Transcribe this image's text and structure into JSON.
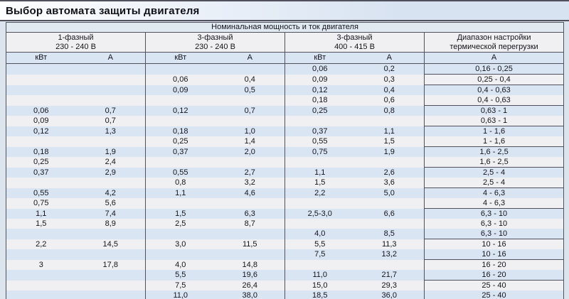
{
  "page_title": "Выбор автомата защиты двигателя",
  "table": {
    "top_header": "Номинальная мощность и ток двигателя",
    "groups": [
      {
        "line1": "1-фазный",
        "line2": "230 - 240 В"
      },
      {
        "line1": "3-фазный",
        "line2": "230 - 240 В"
      },
      {
        "line1": "3-фазный",
        "line2": "400 - 415 В"
      },
      {
        "line1": "Диапазон настройки",
        "line2": "термической перегрузки"
      }
    ],
    "sub_headers": [
      "кВт",
      "А",
      "кВт",
      "А",
      "кВт",
      "А",
      "А"
    ],
    "rows": [
      [
        "",
        "",
        "",
        "",
        "0,06",
        "0,2",
        "0,16 - 0,25"
      ],
      [
        "",
        "",
        "0,06",
        "0,4",
        "0,09",
        "0,3",
        "0,25 - 0,4"
      ],
      [
        "",
        "",
        "0,09",
        "0,5",
        "0,12",
        "0,4",
        "0,4 - 0,63"
      ],
      [
        "",
        "",
        "",
        "",
        "0,18",
        "0,6",
        "0,4 - 0,63"
      ],
      [
        "0,06",
        "0,7",
        "0,12",
        "0,7",
        "0,25",
        "0,8",
        "0,63 - 1"
      ],
      [
        "0,09",
        "0,7",
        "",
        "",
        "",
        "",
        "0,63 - 1"
      ],
      [
        "0,12",
        "1,3",
        "0,18",
        "1,0",
        "0,37",
        "1,1",
        "1 - 1,6"
      ],
      [
        "",
        "",
        "0,25",
        "1,4",
        "0,55",
        "1,5",
        "1 - 1,6"
      ],
      [
        "0,18",
        "1,9",
        "0,37",
        "2,0",
        "0,75",
        "1,9",
        "1,6 - 2,5"
      ],
      [
        "0,25",
        "2,4",
        "",
        "",
        "",
        "",
        "1,6 - 2,5"
      ],
      [
        "0,37",
        "2,9",
        "0,55",
        "2,7",
        "1,1",
        "2,6",
        "2,5 - 4"
      ],
      [
        "",
        "",
        "0,8",
        "3,2",
        "1,5",
        "3,6",
        "2,5 - 4"
      ],
      [
        "0,55",
        "4,2",
        "1,1",
        "4,6",
        "2,2",
        "5,0",
        "4 - 6,3"
      ],
      [
        "0,75",
        "5,6",
        "",
        "",
        "",
        "",
        "4 - 6,3"
      ],
      [
        "1,1",
        "7,4",
        "1,5",
        "6,3",
        "2,5-3,0",
        "6,6",
        "6,3 - 10"
      ],
      [
        "1,5",
        "8,9",
        "2,5",
        "8,7",
        "",
        "",
        "6,3 - 10"
      ],
      [
        "",
        "",
        "",
        "",
        "4,0",
        "8,5",
        "6,3 - 10"
      ],
      [
        "2,2",
        "14,5",
        "3,0",
        "11,5",
        "5,5",
        "11,3",
        "10 - 16"
      ],
      [
        "",
        "",
        "",
        "",
        "7,5",
        "13,2",
        "10 - 16"
      ],
      [
        "3",
        "17,8",
        "4,0",
        "14,8",
        "",
        "",
        "16 - 20"
      ],
      [
        "",
        "",
        "5,5",
        "19,6",
        "11,0",
        "21,7",
        "16 - 20"
      ],
      [
        "",
        "",
        "7,5",
        "26,4",
        "15,0",
        "29,3",
        "25 - 40"
      ],
      [
        "",
        "",
        "11,0",
        "38,0",
        "18,5",
        "36,0",
        "25 - 40"
      ]
    ],
    "col4_separator_after": [
      0,
      1,
      3,
      5,
      7,
      9,
      11,
      13,
      16,
      18,
      20
    ]
  },
  "colors": {
    "page_bg": "#dce5ee",
    "title_grad_left": "#fdfdfe",
    "title_grad_right": "#d8e3f1",
    "title_text": "#101018",
    "text": "#14141c",
    "border_dark": "#51515e",
    "header_top_bg": "#e0e8f0",
    "group_header_bg": "#f0f0f2",
    "subheader_bg": "#dae5f3",
    "row_blue": "#dae5f3",
    "row_white": "#f0f0f2"
  }
}
